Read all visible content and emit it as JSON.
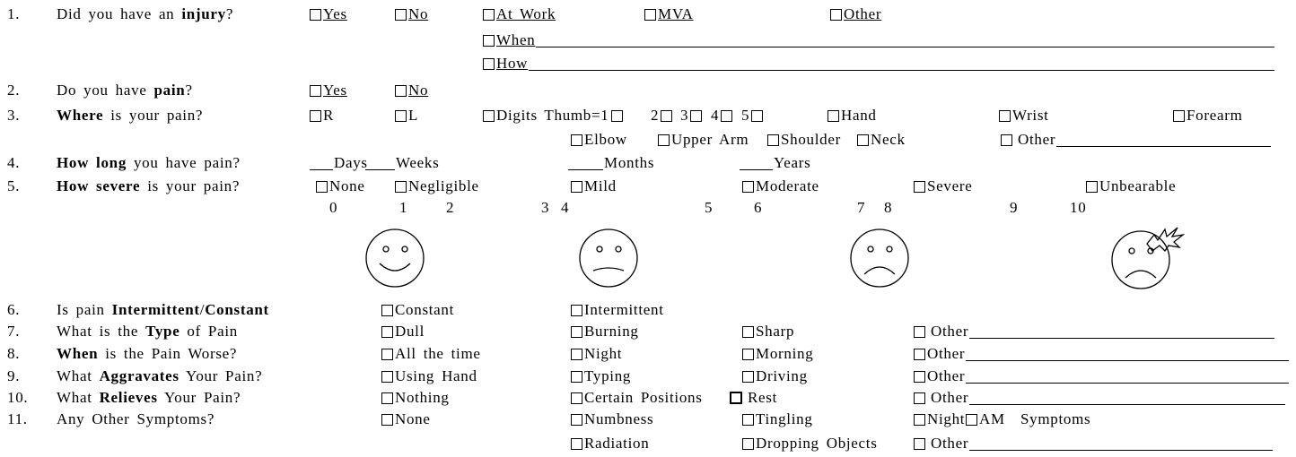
{
  "questions": [
    {
      "number": "1.",
      "text": [
        {
          "text": "Did you have an "
        },
        {
          "text": "injury",
          "bold": true
        },
        {
          "text": "?"
        }
      ],
      "underline": true,
      "options": [
        "Yes",
        "No",
        "At Work",
        "MVA",
        "Other",
        "When",
        "How"
      ]
    },
    {
      "number": "2.",
      "text": [
        {
          "text": "Do you have "
        },
        {
          "text": "pain",
          "bold": true
        },
        {
          "text": "?"
        }
      ],
      "underline": true,
      "options": [
        "Yes",
        "No"
      ]
    },
    {
      "number": "3.",
      "text": [
        {
          "text": "Where",
          "bold": true
        },
        {
          "text": " is your pain?"
        }
      ],
      "options": [
        "R",
        "L",
        "Digits Thumb=1",
        "2",
        "3",
        "4",
        "5",
        "Hand",
        "Wrist",
        "Forearm",
        "Elbow",
        "Upper Arm",
        "Shoulder",
        "Neck",
        "Other"
      ]
    },
    {
      "number": "4.",
      "text": [
        {
          "text": "How long",
          "bold": true
        },
        {
          "text": " you have pain?"
        }
      ],
      "options": [
        "Days",
        "Weeks",
        "Months",
        "Years"
      ]
    },
    {
      "number": "5.",
      "text": [
        {
          "text": "How severe",
          "bold": true
        },
        {
          "text": " is your pain?"
        }
      ],
      "options": [
        "None",
        "Negligible",
        "Mild",
        "Moderate",
        "Severe",
        "Unbearable"
      ],
      "scale": [
        0,
        1,
        2,
        3,
        4,
        5,
        6,
        7,
        8,
        9,
        10
      ]
    },
    {
      "number": "6.",
      "text": [
        {
          "text": "Is pain "
        },
        {
          "text": "Intermittent",
          "bold": true
        },
        {
          "text": "/"
        },
        {
          "text": "Constant",
          "bold": true
        }
      ],
      "options": [
        "Constant",
        "Intermittent"
      ]
    },
    {
      "number": "7.",
      "text": [
        {
          "text": "What is the "
        },
        {
          "text": "Type",
          "bold": true
        },
        {
          "text": " of Pain"
        }
      ],
      "options": [
        "Dull",
        "Burning",
        "Sharp",
        "Other"
      ]
    },
    {
      "number": "8.",
      "text": [
        {
          "text": "When",
          "bold": true
        },
        {
          "text": " is the Pain Worse?"
        }
      ],
      "options": [
        "All the time",
        "Night",
        "Morning",
        "Other"
      ]
    },
    {
      "number": "9.",
      "text": [
        {
          "text": "What "
        },
        {
          "text": "Aggravates",
          "bold": true
        },
        {
          "text": " Your Pain?"
        }
      ],
      "options": [
        "Using Hand",
        "Typing",
        "Driving",
        "Other"
      ]
    },
    {
      "number": "10.",
      "text": [
        {
          "text": "What "
        },
        {
          "text": "Relieves",
          "bold": true
        },
        {
          "text": " Your Pain?"
        }
      ],
      "options": [
        "Nothing",
        "Certain Positions",
        "Rest",
        "Other"
      ]
    },
    {
      "number": "11.",
      "text": [
        {
          "text": "Any Other Symptoms?"
        }
      ],
      "options": [
        "None",
        "Numbness",
        "Tingling",
        "Night",
        "AM",
        "Symptoms",
        "Radiation",
        "Dropping Objects",
        "Other"
      ]
    }
  ]
}
